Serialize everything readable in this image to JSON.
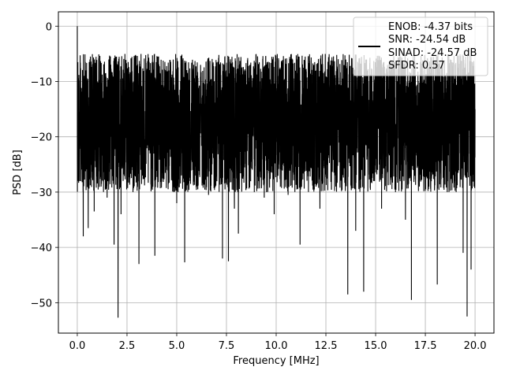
{
  "chart_data": {
    "type": "line",
    "title": "",
    "xlabel": "Frequency [MHz]",
    "ylabel": "PSD [dB]",
    "xlim": [
      -0.95,
      20.95
    ],
    "ylim": [
      -55.5,
      2.6
    ],
    "x_ticks": [
      0.0,
      2.5,
      5.0,
      7.5,
      10.0,
      12.5,
      15.0,
      17.5,
      20.0
    ],
    "x_tick_labels": [
      "0.0",
      "2.5",
      "5.0",
      "7.5",
      "10.0",
      "12.5",
      "15.0",
      "17.5",
      "20.0"
    ],
    "y_ticks": [
      0,
      -10,
      -20,
      -30,
      -40,
      -50
    ],
    "y_tick_labels": [
      "0",
      "−10",
      "−20",
      "−30",
      "−40",
      "−50"
    ],
    "grid": true,
    "legend_position": "top-right",
    "legend_lines": [
      "ENOB: -4.37 bits",
      "SNR: -24.54 dB",
      "SINAD: -24.57 dB",
      "SFDR: 0.57"
    ],
    "series": [
      {
        "color": "#000000",
        "description": "dense noisy PSD trace, mostly between about -30 and -5 dB with deep dips",
        "points": [
          [
            0.0,
            0.0
          ],
          [
            0.01,
            -26.0
          ],
          [
            0.03,
            -6.5
          ],
          [
            0.06,
            -14.0
          ],
          [
            0.1,
            -22.0
          ],
          [
            0.15,
            -9.0
          ],
          [
            0.22,
            -18.0
          ],
          [
            0.3,
            -38.0
          ],
          [
            0.35,
            -12.0
          ],
          [
            0.42,
            -24.0
          ],
          [
            0.55,
            -36.5
          ],
          [
            0.7,
            -15.0
          ],
          [
            0.85,
            -33.5
          ],
          [
            1.0,
            -10.0
          ],
          [
            1.2,
            -29.0
          ],
          [
            1.4,
            -8.5
          ],
          [
            1.5,
            -31.0
          ],
          [
            1.85,
            -39.5
          ],
          [
            2.05,
            -52.7
          ],
          [
            2.2,
            -34.0
          ],
          [
            2.5,
            -9.0
          ],
          [
            2.8,
            -30.0
          ],
          [
            3.1,
            -43.0
          ],
          [
            3.4,
            -25.0
          ],
          [
            3.6,
            -7.5
          ],
          [
            3.9,
            -41.5
          ],
          [
            4.2,
            -28.0
          ],
          [
            4.6,
            -8.0
          ],
          [
            5.0,
            -32.0
          ],
          [
            5.4,
            -42.7
          ],
          [
            5.8,
            -26.0
          ],
          [
            6.2,
            -7.0
          ],
          [
            6.6,
            -30.5
          ],
          [
            7.0,
            -11.0
          ],
          [
            7.3,
            -42.0
          ],
          [
            7.6,
            -42.5
          ],
          [
            7.9,
            -33.0
          ],
          [
            8.1,
            -37.5
          ],
          [
            8.4,
            -8.0
          ],
          [
            8.9,
            -30.0
          ],
          [
            9.4,
            -31.0
          ],
          [
            9.9,
            -34.0
          ],
          [
            10.2,
            -7.5
          ],
          [
            10.6,
            -30.5
          ],
          [
            11.2,
            -39.5
          ],
          [
            11.6,
            -26.0
          ],
          [
            12.2,
            -33.0
          ],
          [
            12.6,
            -10.0
          ],
          [
            13.0,
            -29.0
          ],
          [
            13.6,
            -48.5
          ],
          [
            14.0,
            -37.0
          ],
          [
            14.4,
            -48.0
          ],
          [
            14.9,
            -28.0
          ],
          [
            15.3,
            -33.0
          ],
          [
            15.6,
            -7.0
          ],
          [
            16.0,
            -30.0
          ],
          [
            16.5,
            -35.0
          ],
          [
            16.8,
            -49.5
          ],
          [
            17.2,
            -29.0
          ],
          [
            17.6,
            -8.0
          ],
          [
            18.1,
            -46.7
          ],
          [
            18.6,
            -30.0
          ],
          [
            19.0,
            -10.0
          ],
          [
            19.4,
            -41.0
          ],
          [
            19.6,
            -52.5
          ],
          [
            19.8,
            -44.0
          ],
          [
            19.95,
            -29.0
          ],
          [
            20.0,
            -15.0
          ]
        ]
      }
    ]
  }
}
